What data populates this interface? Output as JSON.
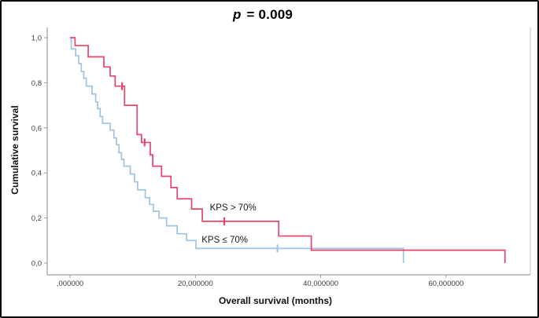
{
  "figure": {
    "title_p": "p",
    "title_rest": " = 0.009"
  },
  "chart_data": {
    "type": "line",
    "subtype": "kaplan-meier-step",
    "title": "p = 0.009",
    "xlabel": "Overall survival (months)",
    "ylabel": "Cumulative survival",
    "x_tick_labels": [
      ",000000",
      "20,000000",
      "40,000000",
      "60,000000"
    ],
    "x_tick_values": [
      0,
      20,
      40,
      60
    ],
    "y_tick_labels": [
      "0,0",
      "0,2",
      "0,4",
      "0,6",
      "0,8",
      "1,0"
    ],
    "y_tick_values": [
      0,
      0.2,
      0.4,
      0.6,
      0.8,
      1.0
    ],
    "xlim": [
      -3.6,
      73.4
    ],
    "ylim": [
      -0.05,
      1.05
    ],
    "grid": false,
    "legend": "inline-labels",
    "series": [
      {
        "name": "KPS > 70%",
        "color": "#e8436a",
        "label_pos": [
          22.3,
          0.245
        ],
        "steps": [
          [
            0,
            1.0
          ],
          [
            0.8,
            0.965
          ],
          [
            2.9,
            0.915
          ],
          [
            5.4,
            0.87
          ],
          [
            6.4,
            0.83
          ],
          [
            7.2,
            0.785
          ],
          [
            8.7,
            0.7
          ],
          [
            10.7,
            0.57
          ],
          [
            11.4,
            0.535
          ],
          [
            12.8,
            0.48
          ],
          [
            13.2,
            0.43
          ],
          [
            14.6,
            0.385
          ],
          [
            16.1,
            0.335
          ],
          [
            17.1,
            0.285
          ],
          [
            19.4,
            0.24
          ],
          [
            21.1,
            0.185
          ],
          [
            33.3,
            0.12
          ],
          [
            38.5,
            0.057
          ],
          [
            69.4,
            0.0
          ]
        ],
        "censors": [
          [
            8.3,
            0.785
          ],
          [
            11.9,
            0.535
          ],
          [
            24.6,
            0.185
          ]
        ]
      },
      {
        "name": "KPS ≤ 70%",
        "color": "#9dc3e6",
        "label_pos": [
          21.0,
          0.1
        ],
        "steps": [
          [
            0,
            1.0
          ],
          [
            0.2,
            0.95
          ],
          [
            0.9,
            0.92
          ],
          [
            1.4,
            0.885
          ],
          [
            1.8,
            0.85
          ],
          [
            2.2,
            0.82
          ],
          [
            2.6,
            0.785
          ],
          [
            3.5,
            0.75
          ],
          [
            4.1,
            0.715
          ],
          [
            4.4,
            0.685
          ],
          [
            4.8,
            0.65
          ],
          [
            5.2,
            0.62
          ],
          [
            6.4,
            0.59
          ],
          [
            7.0,
            0.555
          ],
          [
            7.4,
            0.525
          ],
          [
            7.8,
            0.49
          ],
          [
            8.2,
            0.46
          ],
          [
            8.6,
            0.43
          ],
          [
            9.6,
            0.395
          ],
          [
            10.3,
            0.36
          ],
          [
            10.8,
            0.325
          ],
          [
            12.0,
            0.29
          ],
          [
            12.7,
            0.26
          ],
          [
            13.3,
            0.23
          ],
          [
            14.2,
            0.2
          ],
          [
            15.4,
            0.165
          ],
          [
            17.1,
            0.13
          ],
          [
            18.6,
            0.1
          ],
          [
            20.1,
            0.065
          ],
          [
            53.2,
            0.0
          ]
        ],
        "censors": [
          [
            33.1,
            0.065
          ]
        ]
      }
    ]
  }
}
